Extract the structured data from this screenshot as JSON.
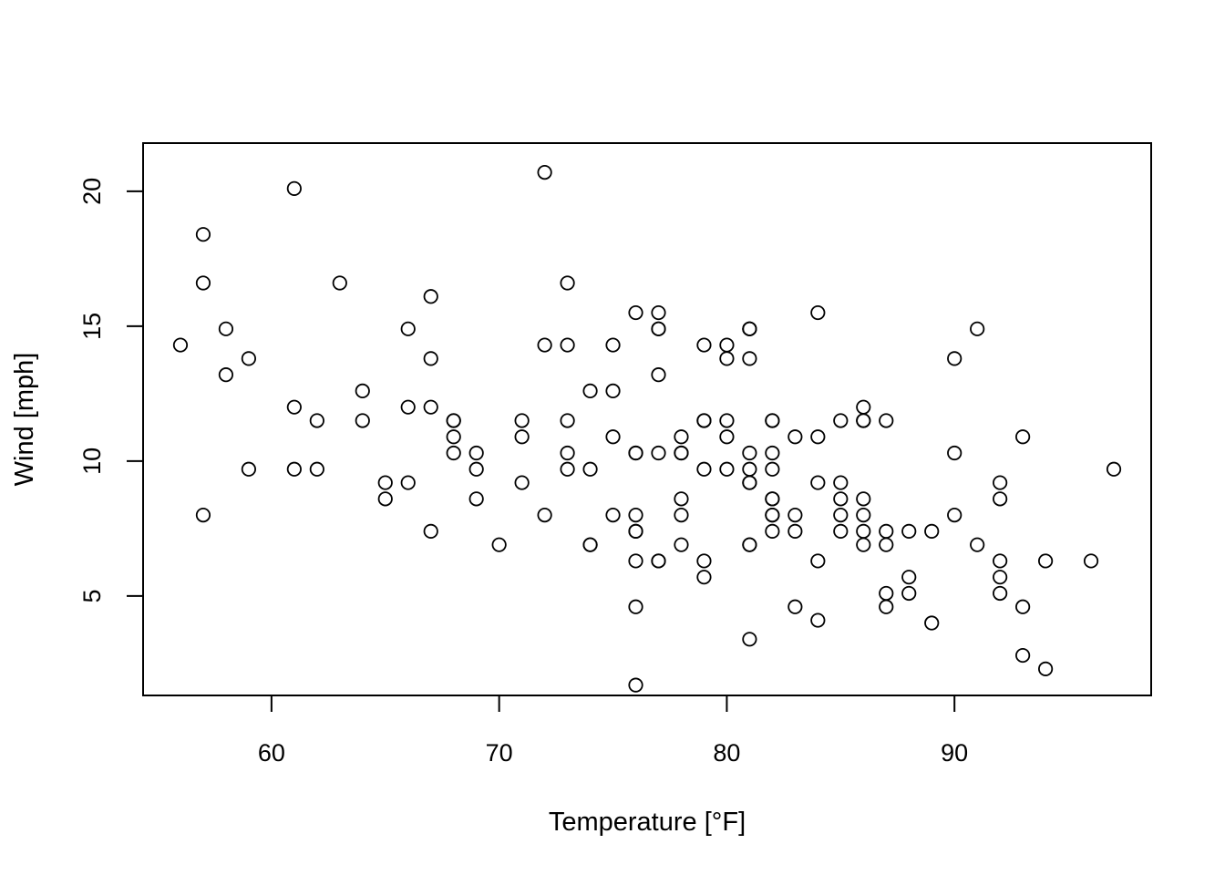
{
  "chart_data": {
    "type": "scatter",
    "title": "",
    "xlabel": "Temperature [°F]",
    "ylabel": "Wind [mph]",
    "xlim": [
      54.36,
      98.64
    ],
    "ylim": [
      1.316,
      21.784
    ],
    "xticks": [
      "60",
      "70",
      "80",
      "90"
    ],
    "yticks": [
      "5",
      "10",
      "15",
      "20"
    ],
    "grid": false,
    "marker": "open-circle",
    "color": "#000000",
    "x": [
      67,
      72,
      74,
      62,
      56,
      66,
      65,
      59,
      61,
      69,
      74,
      69,
      66,
      68,
      58,
      64,
      66,
      57,
      68,
      62,
      59,
      73,
      61,
      61,
      57,
      58,
      57,
      67,
      81,
      79,
      76,
      78,
      74,
      67,
      84,
      85,
      79,
      82,
      87,
      90,
      87,
      93,
      92,
      82,
      80,
      79,
      77,
      72,
      65,
      73,
      76,
      77,
      76,
      76,
      76,
      75,
      78,
      73,
      80,
      77,
      83,
      84,
      85,
      81,
      84,
      83,
      83,
      88,
      92,
      92,
      89,
      82,
      73,
      81,
      91,
      80,
      81,
      82,
      84,
      87,
      85,
      74,
      81,
      82,
      86,
      85,
      82,
      86,
      88,
      86,
      83,
      81,
      81,
      81,
      82,
      86,
      85,
      87,
      89,
      90,
      90,
      92,
      86,
      86,
      82,
      80,
      79,
      77,
      79,
      76,
      78,
      78,
      77,
      72,
      75,
      79,
      81,
      86,
      88,
      97,
      94,
      96,
      94,
      91,
      92,
      93,
      93,
      87,
      84,
      80,
      78,
      75,
      73,
      81,
      76,
      77,
      71,
      71,
      78,
      67,
      76,
      68,
      82,
      64,
      71,
      81,
      69,
      63,
      70,
      77,
      75,
      76,
      68
    ],
    "y": [
      7.4,
      8.0,
      12.6,
      11.5,
      14.3,
      14.9,
      8.6,
      13.8,
      20.1,
      8.6,
      6.9,
      9.7,
      9.2,
      10.9,
      13.2,
      11.5,
      12.0,
      18.4,
      11.5,
      9.7,
      9.7,
      16.6,
      9.7,
      12.0,
      16.6,
      14.9,
      8.0,
      12.0,
      14.9,
      5.7,
      7.4,
      8.6,
      9.7,
      16.1,
      9.2,
      8.6,
      14.3,
      9.7,
      6.9,
      13.8,
      11.5,
      10.9,
      9.2,
      8.0,
      13.8,
      11.5,
      14.9,
      20.7,
      9.2,
      11.5,
      10.3,
      6.3,
      1.7,
      4.6,
      6.3,
      8.0,
      8.0,
      10.3,
      11.5,
      14.9,
      8.0,
      4.1,
      9.2,
      9.2,
      10.9,
      4.6,
      10.9,
      5.1,
      6.3,
      5.7,
      7.4,
      8.6,
      14.3,
      14.9,
      14.9,
      14.3,
      6.9,
      10.3,
      6.3,
      5.1,
      11.5,
      6.9,
      9.7,
      11.5,
      8.6,
      8.0,
      8.6,
      12.0,
      7.4,
      7.4,
      7.4,
      9.2,
      6.9,
      13.8,
      7.4,
      6.9,
      7.4,
      4.6,
      4.0,
      10.3,
      8.0,
      8.6,
      11.5,
      11.5,
      11.5,
      9.7,
      11.5,
      10.3,
      6.3,
      7.4,
      10.9,
      10.3,
      15.5,
      14.3,
      12.6,
      9.7,
      3.4,
      8.0,
      5.7,
      9.7,
      2.3,
      6.3,
      6.3,
      6.9,
      5.1,
      2.8,
      4.6,
      7.4,
      15.5,
      10.9,
      10.3,
      10.9,
      9.7,
      14.9,
      15.5,
      6.3,
      10.9,
      11.5,
      6.9,
      13.8,
      10.3,
      10.3,
      8.0,
      12.6,
      9.2,
      10.3,
      10.3,
      16.6,
      6.9,
      13.2,
      14.3,
      8.0,
      11.5
    ]
  }
}
